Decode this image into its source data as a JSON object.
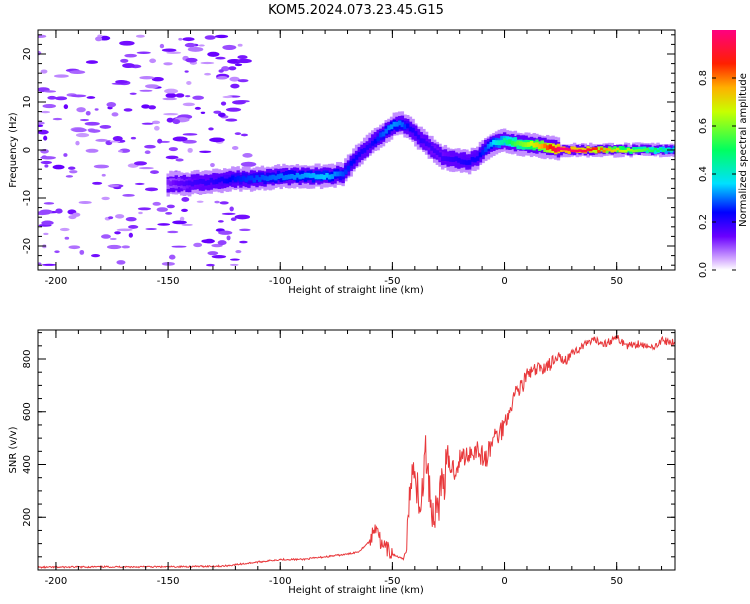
{
  "title": "KOM5.2024.073.23.45.G15",
  "chart_data": [
    {
      "type": "heatmap",
      "name": "spectrogram",
      "xlabel": "Height of straight line (km)",
      "ylabel": "Frequency (Hz)",
      "xlim": [
        -208,
        76
      ],
      "ylim": [
        -25,
        25
      ],
      "xticks": [
        -200,
        -150,
        -100,
        -50,
        0,
        50
      ],
      "xtick_labels": [
        "-200",
        "-150",
        "-100",
        "-50",
        "0",
        "50"
      ],
      "yticks": [
        -20,
        -10,
        0,
        10,
        20
      ],
      "ytick_labels": [
        "-20",
        "-10",
        "0",
        "10",
        "20"
      ],
      "ridge": {
        "x": [
          -150,
          -140,
          -130,
          -120,
          -110,
          -100,
          -90,
          -80,
          -72,
          -66,
          -60,
          -55,
          -50,
          -46,
          -42,
          -38,
          -33,
          -28,
          -22,
          -16,
          -12,
          -8,
          -4,
          0,
          5,
          10,
          15,
          20,
          25,
          35,
          50,
          76
        ],
        "freq": [
          -7.0,
          -7.0,
          -6.5,
          -6.0,
          -6.0,
          -5.5,
          -5.5,
          -5.5,
          -5.0,
          -1.5,
          1.0,
          3.0,
          5.0,
          5.5,
          4.5,
          2.5,
          0.5,
          -1.5,
          -2.0,
          -2.5,
          -1.5,
          0.5,
          1.5,
          2.0,
          1.5,
          1.2,
          1.0,
          0.5,
          0.0,
          0.0,
          0.0,
          0.0
        ],
        "amplitude": [
          0.12,
          0.18,
          0.2,
          0.25,
          0.28,
          0.3,
          0.32,
          0.35,
          0.28,
          0.22,
          0.2,
          0.28,
          0.32,
          0.3,
          0.22,
          0.2,
          0.18,
          0.18,
          0.2,
          0.22,
          0.22,
          0.28,
          0.38,
          0.45,
          0.55,
          0.62,
          0.72,
          0.85,
          1.0,
          0.95,
          0.7,
          0.4
        ]
      },
      "colorbar": {
        "label": "Normalized spectral amplitude",
        "range": [
          0,
          1
        ],
        "ticks": [
          0.0,
          0.2,
          0.4,
          0.6,
          0.8
        ],
        "tick_labels": [
          "0.0",
          "0.2",
          "0.4",
          "0.6",
          "0.8"
        ]
      }
    },
    {
      "type": "line",
      "name": "snr",
      "xlabel": "Height of straight line (km)",
      "ylabel": "SNR (v/v)",
      "xlim": [
        -208,
        76
      ],
      "ylim": [
        0,
        910
      ],
      "xticks": [
        -200,
        -150,
        -100,
        -50,
        0,
        50
      ],
      "xtick_labels": [
        "-200",
        "-150",
        "-100",
        "-50",
        "0",
        "50"
      ],
      "yticks": [
        200,
        400,
        600,
        800
      ],
      "ytick_labels": [
        "200",
        "400",
        "600",
        "800"
      ],
      "color": "#e8383b",
      "series": [
        {
          "x": [
            -208,
            -180,
            -150,
            -125,
            -110,
            -100,
            -90,
            -80,
            -70,
            -65,
            -60,
            -57,
            -55,
            -50,
            -45,
            -42,
            -40,
            -38,
            -35,
            -32,
            -30,
            -27,
            -25,
            -22,
            -20,
            -15,
            -12,
            -10,
            -8,
            -5,
            -2,
            0,
            2,
            5,
            8,
            10,
            15,
            20,
            25,
            30,
            35,
            40,
            45,
            50,
            55,
            60,
            65,
            70,
            76
          ],
          "values": [
            10,
            12,
            12,
            15,
            30,
            40,
            40,
            50,
            60,
            70,
            110,
            180,
            90,
            60,
            40,
            300,
            420,
            200,
            450,
            200,
            250,
            350,
            400,
            380,
            420,
            450,
            460,
            430,
            420,
            500,
            520,
            560,
            600,
            680,
            700,
            740,
            760,
            780,
            800,
            820,
            850,
            870,
            860,
            880,
            850,
            860,
            840,
            870,
            860
          ]
        }
      ]
    }
  ]
}
